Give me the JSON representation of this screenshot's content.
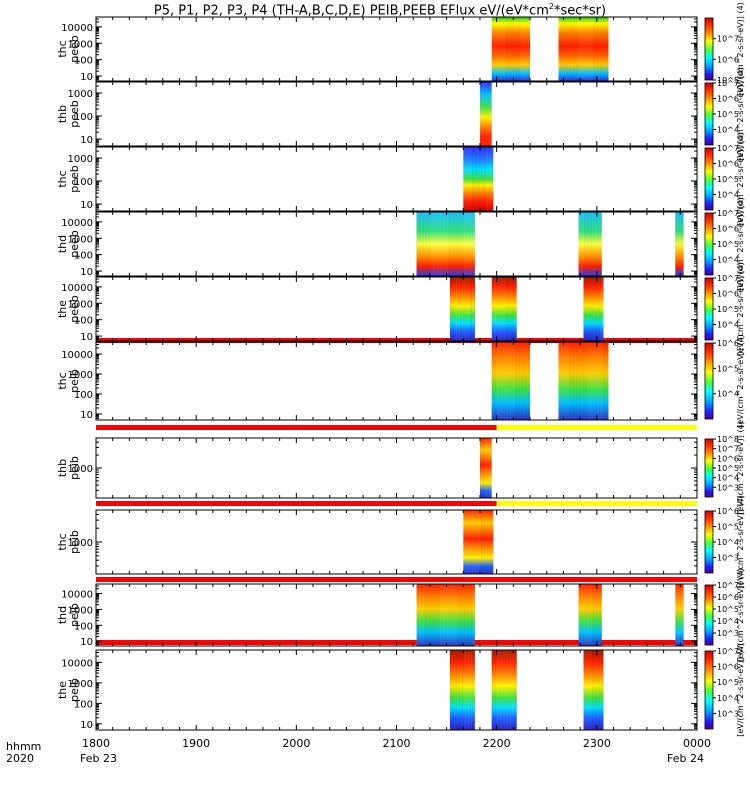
{
  "title_html_parts": [
    "P5, P1, P2, P3, P4 (TH-A,B,C,D,E) PEIB,PEEB EFlux eV/(eV*cm",
    "2",
    "*sec*sr)"
  ],
  "footer": {
    "hhmm": "hhmm",
    "year": "2020",
    "date_start": "Feb 23",
    "date_end": "Feb 24"
  },
  "x_ticks": [
    "1800",
    "1900",
    "2000",
    "2100",
    "2200",
    "2300",
    "0000"
  ],
  "colorbar_label": "[eV/(cm^2-s-sr-eV)] (4)",
  "chart_data": {
    "type": "heatmap",
    "title": "P5, P1, P2, P3, P4 (TH-A,B,C,D,E) PEIB,PEEB EFlux eV/(eV*cm2*sec*sr)",
    "x_range_hhmm": [
      "18:00",
      "24:00"
    ],
    "x_ticks": [
      "1800",
      "1900",
      "2000",
      "2100",
      "2200",
      "2300",
      "0000"
    ],
    "y_scale": "log",
    "colorbar": "log, rainbow (purple-blue-cyan-green-yellow-red)",
    "panels": [
      {
        "name": "thc",
        "sub": "peeb",
        "ylog": [
          5,
          40000
        ],
        "yticks": [
          "10",
          "100",
          "1000",
          "10000"
        ],
        "cbar": [
          5,
          8
        ],
        "cbar_ticks": [
          "10^5",
          "10^6",
          "10^7"
        ],
        "blocks": [
          {
            "t0": "21:57",
            "t1": "22:20"
          },
          {
            "t0": "22:37",
            "t1": "23:07"
          }
        ],
        "top_bar": null
      },
      {
        "name": "thb",
        "sub": "peeb",
        "ylog": [
          5,
          3000
        ],
        "yticks": [
          "10",
          "100",
          "1000"
        ],
        "cbar": [
          3,
          7
        ],
        "cbar_ticks": [
          "10^4",
          "10^5",
          "10^6",
          "10^7"
        ],
        "blocks": [
          {
            "t0": "21:50",
            "t1": "21:57"
          }
        ],
        "top_bar": null
      },
      {
        "name": "thc",
        "sub": "peeb",
        "ylog": [
          5,
          3000
        ],
        "yticks": [
          "10",
          "100",
          "1000"
        ],
        "cbar": [
          3,
          7
        ],
        "cbar_ticks": [
          "10^4",
          "10^5",
          "10^6",
          "10^7"
        ],
        "blocks": [
          {
            "t0": "21:40",
            "t1": "21:58"
          }
        ],
        "top_bar": null
      },
      {
        "name": "thd",
        "sub": "peeb",
        "ylog": [
          5,
          40000
        ],
        "yticks": [
          "10",
          "100",
          "1000",
          "10000"
        ],
        "cbar": [
          3,
          7
        ],
        "cbar_ticks": [
          "10^4",
          "10^5",
          "10^6",
          "10^7"
        ],
        "blocks": [
          {
            "t0": "21:12",
            "t1": "21:47"
          },
          {
            "t0": "22:49",
            "t1": "23:03"
          },
          {
            "t0": "23:47",
            "t1": "23:52"
          }
        ],
        "top_bar": null
      },
      {
        "name": "the",
        "sub": "peeb",
        "ylog": [
          5,
          40000
        ],
        "yticks": [
          "10",
          "100",
          "1000",
          "10000"
        ],
        "cbar": [
          3,
          7
        ],
        "cbar_ticks": [
          "10^4",
          "10^5",
          "10^6",
          "10^7"
        ],
        "blocks": [
          {
            "t0": "21:32",
            "t1": "21:47"
          },
          {
            "t0": "21:57",
            "t1": "22:12"
          },
          {
            "t0": "22:52",
            "t1": "23:04"
          }
        ],
        "top_bar": "red"
      },
      {
        "name": "thc",
        "sub": "peib",
        "ylog": [
          5,
          40000
        ],
        "yticks": [
          "10",
          "100",
          "1000",
          "10000"
        ],
        "cbar": [
          3,
          6
        ],
        "cbar_ticks": [
          "10^4",
          "10^5",
          "10^6"
        ],
        "blocks": [
          {
            "t0": "21:57",
            "t1": "22:20"
          },
          {
            "t0": "22:37",
            "t1": "23:07"
          }
        ],
        "top_bar": "red-yellow"
      },
      {
        "name": "thb",
        "sub": "peib",
        "ylog": [
          200,
          5000
        ],
        "yticks": [
          "1000"
        ],
        "cbar": [
          2,
          8
        ],
        "cbar_ticks": [
          "10^3",
          "10^4",
          "10^5",
          "10^6",
          "10^7",
          "10^8"
        ],
        "blocks": [
          {
            "t0": "21:50",
            "t1": "21:57"
          }
        ],
        "top_bar": "red-yellow"
      },
      {
        "name": "thc",
        "sub": "peib",
        "ylog": [
          200,
          5000
        ],
        "yticks": [
          "1000"
        ],
        "cbar": [
          2,
          6
        ],
        "cbar_ticks": [
          "10^3",
          "10^4",
          "10^5",
          "10^6"
        ],
        "blocks": [
          {
            "t0": "21:40",
            "t1": "21:58"
          }
        ],
        "top_bar": "red"
      },
      {
        "name": "thd",
        "sub": "peib",
        "ylog": [
          5,
          40000
        ],
        "yticks": [
          "10",
          "100",
          "1000",
          "10000"
        ],
        "cbar": [
          2,
          7
        ],
        "cbar_ticks": [
          "10^3",
          "10^4",
          "10^5",
          "10^6",
          "10^7"
        ],
        "blocks": [
          {
            "t0": "21:12",
            "t1": "21:47"
          },
          {
            "t0": "22:49",
            "t1": "23:03"
          },
          {
            "t0": "23:47",
            "t1": "23:52"
          }
        ],
        "top_bar": "red"
      },
      {
        "name": "the",
        "sub": "peib",
        "ylog": [
          5,
          40000
        ],
        "yticks": [
          "10",
          "100",
          "1000",
          "10000"
        ],
        "cbar": [
          2,
          7
        ],
        "cbar_ticks": [
          "10^3",
          "10^4",
          "10^5",
          "10^6",
          "10^7"
        ],
        "blocks": [
          {
            "t0": "21:32",
            "t1": "21:47"
          },
          {
            "t0": "21:57",
            "t1": "22:12"
          },
          {
            "t0": "22:52",
            "t1": "23:04"
          }
        ],
        "top_bar": null
      }
    ]
  }
}
